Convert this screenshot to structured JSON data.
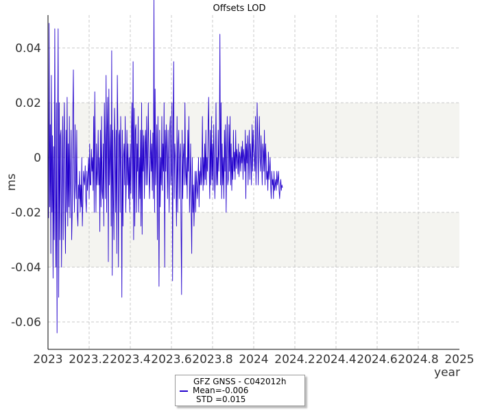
{
  "chart_data": {
    "type": "line",
    "title": "Offsets LOD",
    "xlabel": "year",
    "ylabel": "ms",
    "xlim": [
      2023,
      2025
    ],
    "ylim": [
      -0.07,
      0.052
    ],
    "x_ticks": [
      "2023",
      "2023.2",
      "2023.4",
      "2023.6",
      "2023.8",
      "2024",
      "2024.2",
      "2024.4",
      "2024.6",
      "2024.8",
      "2025"
    ],
    "y_ticks": [
      "0.04",
      "0.02",
      "0",
      "-0.02",
      "-0.04",
      "-0.06"
    ],
    "grid": true,
    "bands": [
      {
        "from": 0.0,
        "to": 0.02
      },
      {
        "from": -0.04,
        "to": -0.02
      }
    ],
    "legend_position": "bottom-center",
    "series": [
      {
        "name": "GFZ GNSS - C042012h",
        "mean_label": "Mean=-0.006",
        "std_label": "STD =0.015",
        "color": "#2200cc",
        "x_start": 2023.0,
        "x_step": 0.00274,
        "values": [
          0.005,
          -0.022,
          0.049,
          -0.018,
          0.012,
          -0.035,
          0.03,
          -0.02,
          0.008,
          -0.044,
          0.004,
          -0.03,
          0.047,
          -0.01,
          -0.04,
          0.02,
          -0.064,
          0.01,
          0.047,
          -0.051,
          0.02,
          -0.03,
          0.008,
          0.01,
          -0.04,
          -0.012,
          0.015,
          -0.03,
          0.003,
          0.02,
          -0.02,
          -0.035,
          0.01,
          -0.02,
          0.022,
          -0.025,
          0.005,
          -0.018,
          0.015,
          -0.022,
          -0.005,
          0.01,
          -0.03,
          -0.02,
          0.016,
          0.032,
          -0.01,
          -0.02,
          0.012,
          -0.008,
          -0.015,
          0.01,
          -0.02,
          -0.025,
          -0.01,
          -0.015,
          -0.005,
          -0.02,
          -0.01,
          -0.018,
          0.0,
          -0.025,
          -0.015,
          -0.005,
          -0.008,
          -0.01,
          -0.003,
          -0.015,
          -0.02,
          -0.005,
          -0.012,
          -0.005,
          0.0,
          -0.015,
          0.005,
          -0.01,
          -0.01,
          0.003,
          -0.005,
          0.0,
          -0.012,
          0.015,
          -0.02,
          0.024,
          0.002,
          -0.02,
          0.005,
          -0.01,
          -0.005,
          0.01,
          -0.01,
          0.0,
          -0.027,
          0.01,
          -0.018,
          0.015,
          -0.012,
          -0.015,
          0.005,
          -0.025,
          0.02,
          0.005,
          -0.015,
          0.03,
          -0.02,
          0.01,
          0.022,
          -0.038,
          0.025,
          -0.01,
          0.0,
          0.012,
          -0.025,
          0.039,
          -0.043,
          0.01,
          -0.015,
          -0.03,
          0.018,
          0.005,
          -0.02,
          0.01,
          -0.035,
          0.03,
          0.01,
          -0.04,
          0.008,
          0.01,
          -0.02,
          0.015,
          -0.005,
          -0.051,
          0.01,
          -0.025,
          0.0,
          0.005,
          -0.01,
          0.015,
          -0.02,
          -0.007,
          0.01,
          -0.01,
          0.005,
          -0.015,
          0.0,
          -0.02,
          0.005,
          -0.013,
          0.01,
          0.02,
          -0.015,
          0.035,
          -0.03,
          0.018,
          -0.025,
          0.01,
          0.012,
          -0.02,
          0.005,
          -0.005,
          0.015,
          -0.02,
          0.0,
          -0.015,
          0.01,
          -0.025,
          0.02,
          -0.028,
          0.01,
          -0.005,
          0.008,
          -0.015,
          0.005,
          0.01,
          -0.01,
          0.015,
          -0.01,
          0.0,
          0.02,
          0.0,
          -0.015,
          -0.005,
          0.01,
          -0.005,
          0.005,
          -0.012,
          0.009,
          -0.015,
          0.058,
          -0.02,
          0.025,
          -0.01,
          0.0,
          0.012,
          -0.03,
          0.015,
          -0.01,
          -0.047,
          0.01,
          -0.018,
          0.0,
          -0.01,
          0.015,
          -0.012,
          0.005,
          -0.005,
          0.02,
          -0.04,
          0.01,
          -0.005,
          0.012,
          0.0,
          -0.015,
          0.01,
          -0.005,
          -0.02,
          0.01,
          0.015,
          -0.01,
          -0.005,
          0.02,
          -0.045,
          0.01,
          0.035,
          -0.015,
          0.005,
          0.0,
          -0.01,
          -0.025,
          0.015,
          -0.02,
          0.005,
          0.01,
          -0.015,
          0.0,
          0.005,
          -0.025,
          -0.05,
          0.01,
          -0.015,
          0.0,
          0.005,
          -0.01,
          0.02,
          -0.005,
          -0.01,
          0.0,
          -0.015,
          0.01,
          -0.005,
          0.015,
          -0.02,
          -0.01,
          0.005,
          -0.02,
          -0.035,
          0.0,
          -0.02,
          -0.01,
          -0.025,
          -0.015,
          -0.005,
          -0.02,
          -0.005,
          -0.01,
          -0.015,
          -0.008,
          0.0,
          -0.018,
          -0.005,
          -0.01,
          0.0,
          -0.01,
          -0.005,
          0.015,
          -0.012,
          0.0,
          -0.01,
          0.005,
          -0.008,
          0.01,
          -0.01,
          0.0,
          -0.005,
          0.01,
          0.022,
          -0.005,
          -0.015,
          0.01,
          -0.01,
          0.015,
          -0.008,
          0.005,
          -0.012,
          0.012,
          0.0,
          -0.015,
          -0.005,
          0.02,
          -0.01,
          0.0,
          -0.01,
          0.01,
          -0.005,
          0.005,
          0.045,
          -0.01,
          0.02,
          -0.015,
          0.005,
          -0.01,
          0.0,
          -0.015,
          0.01,
          -0.005,
          0.012,
          -0.02,
          0.0,
          0.015,
          -0.01,
          -0.008,
          0.012,
          -0.005,
          0.015,
          -0.01,
          0.005,
          -0.012,
          0.0,
          -0.008,
          0.01,
          -0.005,
          0.002,
          -0.008,
          0.01,
          -0.004,
          0.003,
          0.0,
          -0.006,
          0.005,
          -0.007,
          0.002,
          0.0,
          -0.005,
          0.004,
          -0.002,
          0.006,
          -0.008,
          0.003,
          0.0,
          -0.005,
          0.01,
          -0.015,
          0.005,
          -0.002,
          0.008,
          -0.01,
          0.002,
          0.01,
          -0.008,
          0.005,
          0.0,
          -0.01,
          0.012,
          -0.005,
          0.01,
          0.003,
          0.0,
          -0.005,
          0.015,
          -0.01,
          0.0,
          0.02,
          0.005,
          -0.01,
          0.005,
          0.015,
          0.0,
          -0.005,
          0.008,
          0.0,
          -0.01,
          0.005,
          0.002,
          -0.005,
          0.01,
          -0.01,
          0.005,
          0.0,
          -0.008,
          -0.005,
          -0.012,
          0.002,
          -0.008,
          -0.005,
          0.0,
          -0.01,
          -0.015,
          -0.005,
          -0.01,
          -0.008,
          -0.015,
          -0.005,
          -0.012,
          -0.01,
          -0.008,
          -0.012,
          -0.005,
          -0.01,
          -0.008,
          -0.005,
          -0.012,
          -0.015,
          -0.01,
          -0.008,
          -0.012,
          -0.01,
          -0.011
        ]
      }
    ]
  }
}
